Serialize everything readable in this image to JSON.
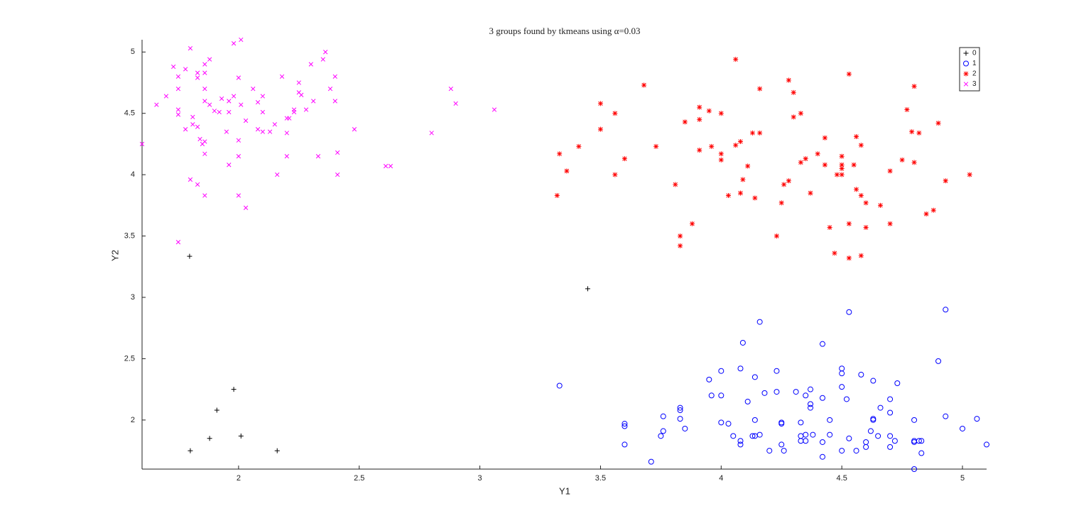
{
  "chart_data": {
    "type": "scatter",
    "title": "3 groups found by tkmeans using α=0.03",
    "x_label": "Y1",
    "y_label": "Y2",
    "xlim": [
      1.6,
      5.1
    ],
    "ylim": [
      1.6,
      5.1
    ],
    "xticks": [
      2,
      2.5,
      3,
      3.5,
      4,
      4.5,
      5
    ],
    "yticks": [
      2,
      2.5,
      3,
      3.5,
      4,
      4.5,
      5
    ],
    "grid": false,
    "legend": "northeast",
    "series": [
      {
        "name": "0",
        "color": "#000000",
        "marker": "+",
        "x": [
          1.797,
          3.447,
          1.98,
          1.91,
          1.88,
          2.01,
          1.8,
          2.16
        ],
        "values": [
          3.335,
          3.07,
          2.25,
          2.08,
          1.85,
          1.87,
          1.75,
          1.75
        ]
      },
      {
        "name": "1",
        "color": "#0000ff",
        "marker": "o",
        "x": [
          3.33,
          3.6,
          3.6,
          3.6,
          3.71,
          3.75,
          3.76,
          3.76,
          3.83,
          3.83,
          3.83,
          3.85,
          3.95,
          3.96,
          4.0,
          4.0,
          4.0,
          4.03,
          4.05,
          4.08,
          4.08,
          4.08,
          4.09,
          4.11,
          4.13,
          4.14,
          4.14,
          4.14,
          4.16,
          4.16,
          4.18,
          4.2,
          4.23,
          4.23,
          4.25,
          4.25,
          4.25,
          4.26,
          4.31,
          4.33,
          4.33,
          4.33,
          4.35,
          4.35,
          4.35,
          4.37,
          4.37,
          4.37,
          4.38,
          4.42,
          4.42,
          4.42,
          4.42,
          4.45,
          4.45,
          4.5,
          4.5,
          4.5,
          4.5,
          4.52,
          4.53,
          4.53,
          4.56,
          4.58,
          4.6,
          4.6,
          4.62,
          4.63,
          4.63,
          4.63,
          4.65,
          4.66,
          4.7,
          4.7,
          4.7,
          4.7,
          4.72,
          4.73,
          4.8,
          4.8,
          4.8,
          4.8,
          4.82,
          4.83,
          4.83,
          4.9,
          4.93,
          4.93,
          5.0,
          5.06,
          5.1
        ],
        "values": [
          2.28,
          1.95,
          1.97,
          1.8,
          1.66,
          1.87,
          1.91,
          2.03,
          2.1,
          2.08,
          2.01,
          1.93,
          2.33,
          2.2,
          2.4,
          2.2,
          1.98,
          1.97,
          1.87,
          2.42,
          1.83,
          1.8,
          2.63,
          2.15,
          1.87,
          2.35,
          2.0,
          1.87,
          2.8,
          1.88,
          2.22,
          1.75,
          2.4,
          2.23,
          1.98,
          1.97,
          1.8,
          1.75,
          2.23,
          1.98,
          1.87,
          1.83,
          2.2,
          1.88,
          1.83,
          2.25,
          2.13,
          2.1,
          1.88,
          2.62,
          2.18,
          1.82,
          1.7,
          2.0,
          1.88,
          2.42,
          2.38,
          2.27,
          1.75,
          2.17,
          2.88,
          1.85,
          1.75,
          2.37,
          1.82,
          1.78,
          1.91,
          2.32,
          2.01,
          2.0,
          1.87,
          2.1,
          2.17,
          2.06,
          1.87,
          1.78,
          1.83,
          2.3,
          2.0,
          1.83,
          1.82,
          1.6,
          1.83,
          1.83,
          1.73,
          2.48,
          2.9,
          2.03,
          1.93,
          2.01,
          1.8
        ]
      },
      {
        "name": "2",
        "color": "#ff0000",
        "marker": "*",
        "x": [
          3.32,
          3.33,
          3.36,
          3.41,
          3.5,
          3.5,
          3.56,
          3.56,
          3.6,
          3.68,
          3.73,
          3.81,
          3.83,
          3.83,
          3.85,
          3.88,
          3.91,
          3.91,
          3.91,
          3.95,
          3.96,
          4.0,
          4.0,
          4.0,
          4.03,
          4.06,
          4.06,
          4.08,
          4.08,
          4.09,
          4.11,
          4.13,
          4.14,
          4.16,
          4.16,
          4.23,
          4.25,
          4.26,
          4.28,
          4.28,
          4.3,
          4.3,
          4.33,
          4.33,
          4.35,
          4.37,
          4.4,
          4.43,
          4.43,
          4.45,
          4.47,
          4.48,
          4.5,
          4.5,
          4.5,
          4.5,
          4.53,
          4.53,
          4.53,
          4.55,
          4.56,
          4.56,
          4.58,
          4.58,
          4.58,
          4.6,
          4.6,
          4.66,
          4.7,
          4.7,
          4.75,
          4.77,
          4.79,
          4.8,
          4.8,
          4.82,
          4.85,
          4.88,
          4.9,
          4.93,
          5.03
        ],
        "values": [
          3.83,
          4.17,
          4.03,
          4.23,
          4.58,
          4.37,
          4.5,
          4.0,
          4.13,
          4.73,
          4.23,
          3.92,
          3.5,
          3.42,
          4.43,
          3.6,
          4.45,
          4.55,
          4.2,
          4.52,
          4.23,
          4.5,
          4.17,
          4.12,
          3.83,
          4.94,
          4.24,
          4.27,
          3.85,
          3.96,
          4.07,
          4.34,
          3.81,
          4.7,
          4.34,
          3.5,
          3.77,
          3.92,
          3.95,
          4.77,
          4.67,
          4.47,
          4.1,
          4.5,
          4.13,
          3.85,
          4.17,
          4.3,
          4.08,
          3.57,
          3.36,
          4.0,
          4.0,
          4.08,
          4.05,
          4.15,
          4.82,
          3.6,
          3.32,
          4.08,
          4.31,
          3.88,
          3.83,
          4.24,
          3.34,
          3.77,
          3.57,
          3.75,
          3.6,
          4.03,
          4.12,
          4.53,
          4.35,
          4.1,
          4.72,
          4.34,
          3.68,
          3.71,
          4.42,
          3.95,
          4.0
        ]
      },
      {
        "name": "3",
        "color": "#ff00ff",
        "marker": "x",
        "x": [
          1.6,
          1.66,
          1.7,
          1.73,
          1.75,
          1.75,
          1.75,
          1.75,
          1.78,
          1.78,
          1.8,
          1.8,
          1.75,
          1.81,
          1.81,
          1.83,
          1.83,
          1.83,
          1.83,
          1.84,
          1.85,
          1.86,
          1.86,
          1.86,
          1.86,
          1.86,
          1.86,
          1.86,
          1.88,
          1.88,
          1.9,
          1.92,
          1.93,
          1.95,
          1.96,
          1.96,
          1.96,
          1.98,
          1.98,
          2.0,
          2.0,
          2.0,
          2.0,
          2.01,
          2.01,
          2.03,
          2.03,
          2.06,
          2.08,
          2.08,
          2.1,
          2.1,
          2.1,
          2.13,
          2.15,
          2.16,
          2.18,
          2.2,
          2.2,
          2.2,
          2.21,
          2.23,
          2.23,
          2.25,
          2.25,
          2.26,
          2.28,
          2.3,
          2.31,
          2.33,
          2.35,
          2.36,
          2.38,
          2.4,
          2.4,
          2.41,
          2.41,
          2.48,
          2.61,
          2.63,
          2.8,
          2.88,
          2.9,
          3.06
        ],
        "values": [
          4.25,
          4.57,
          4.64,
          4.88,
          4.8,
          4.7,
          4.53,
          4.49,
          4.86,
          4.37,
          5.03,
          3.96,
          3.45,
          4.47,
          4.41,
          4.79,
          4.83,
          4.39,
          3.92,
          4.29,
          4.25,
          4.83,
          4.9,
          4.7,
          4.6,
          4.27,
          4.17,
          3.83,
          4.94,
          4.57,
          4.52,
          4.51,
          4.62,
          4.35,
          4.6,
          4.51,
          4.08,
          4.64,
          5.07,
          4.79,
          4.28,
          4.15,
          3.83,
          5.1,
          4.57,
          3.73,
          4.44,
          4.7,
          4.37,
          4.59,
          4.64,
          4.51,
          4.35,
          4.35,
          4.41,
          4.0,
          4.8,
          4.34,
          4.15,
          4.46,
          4.46,
          4.53,
          4.51,
          4.75,
          4.67,
          4.65,
          4.53,
          4.9,
          4.6,
          4.15,
          4.94,
          5.0,
          4.7,
          4.8,
          4.6,
          4.18,
          4.0,
          4.37,
          4.07,
          4.07,
          4.34,
          4.7,
          4.58,
          4.53
        ]
      }
    ]
  }
}
